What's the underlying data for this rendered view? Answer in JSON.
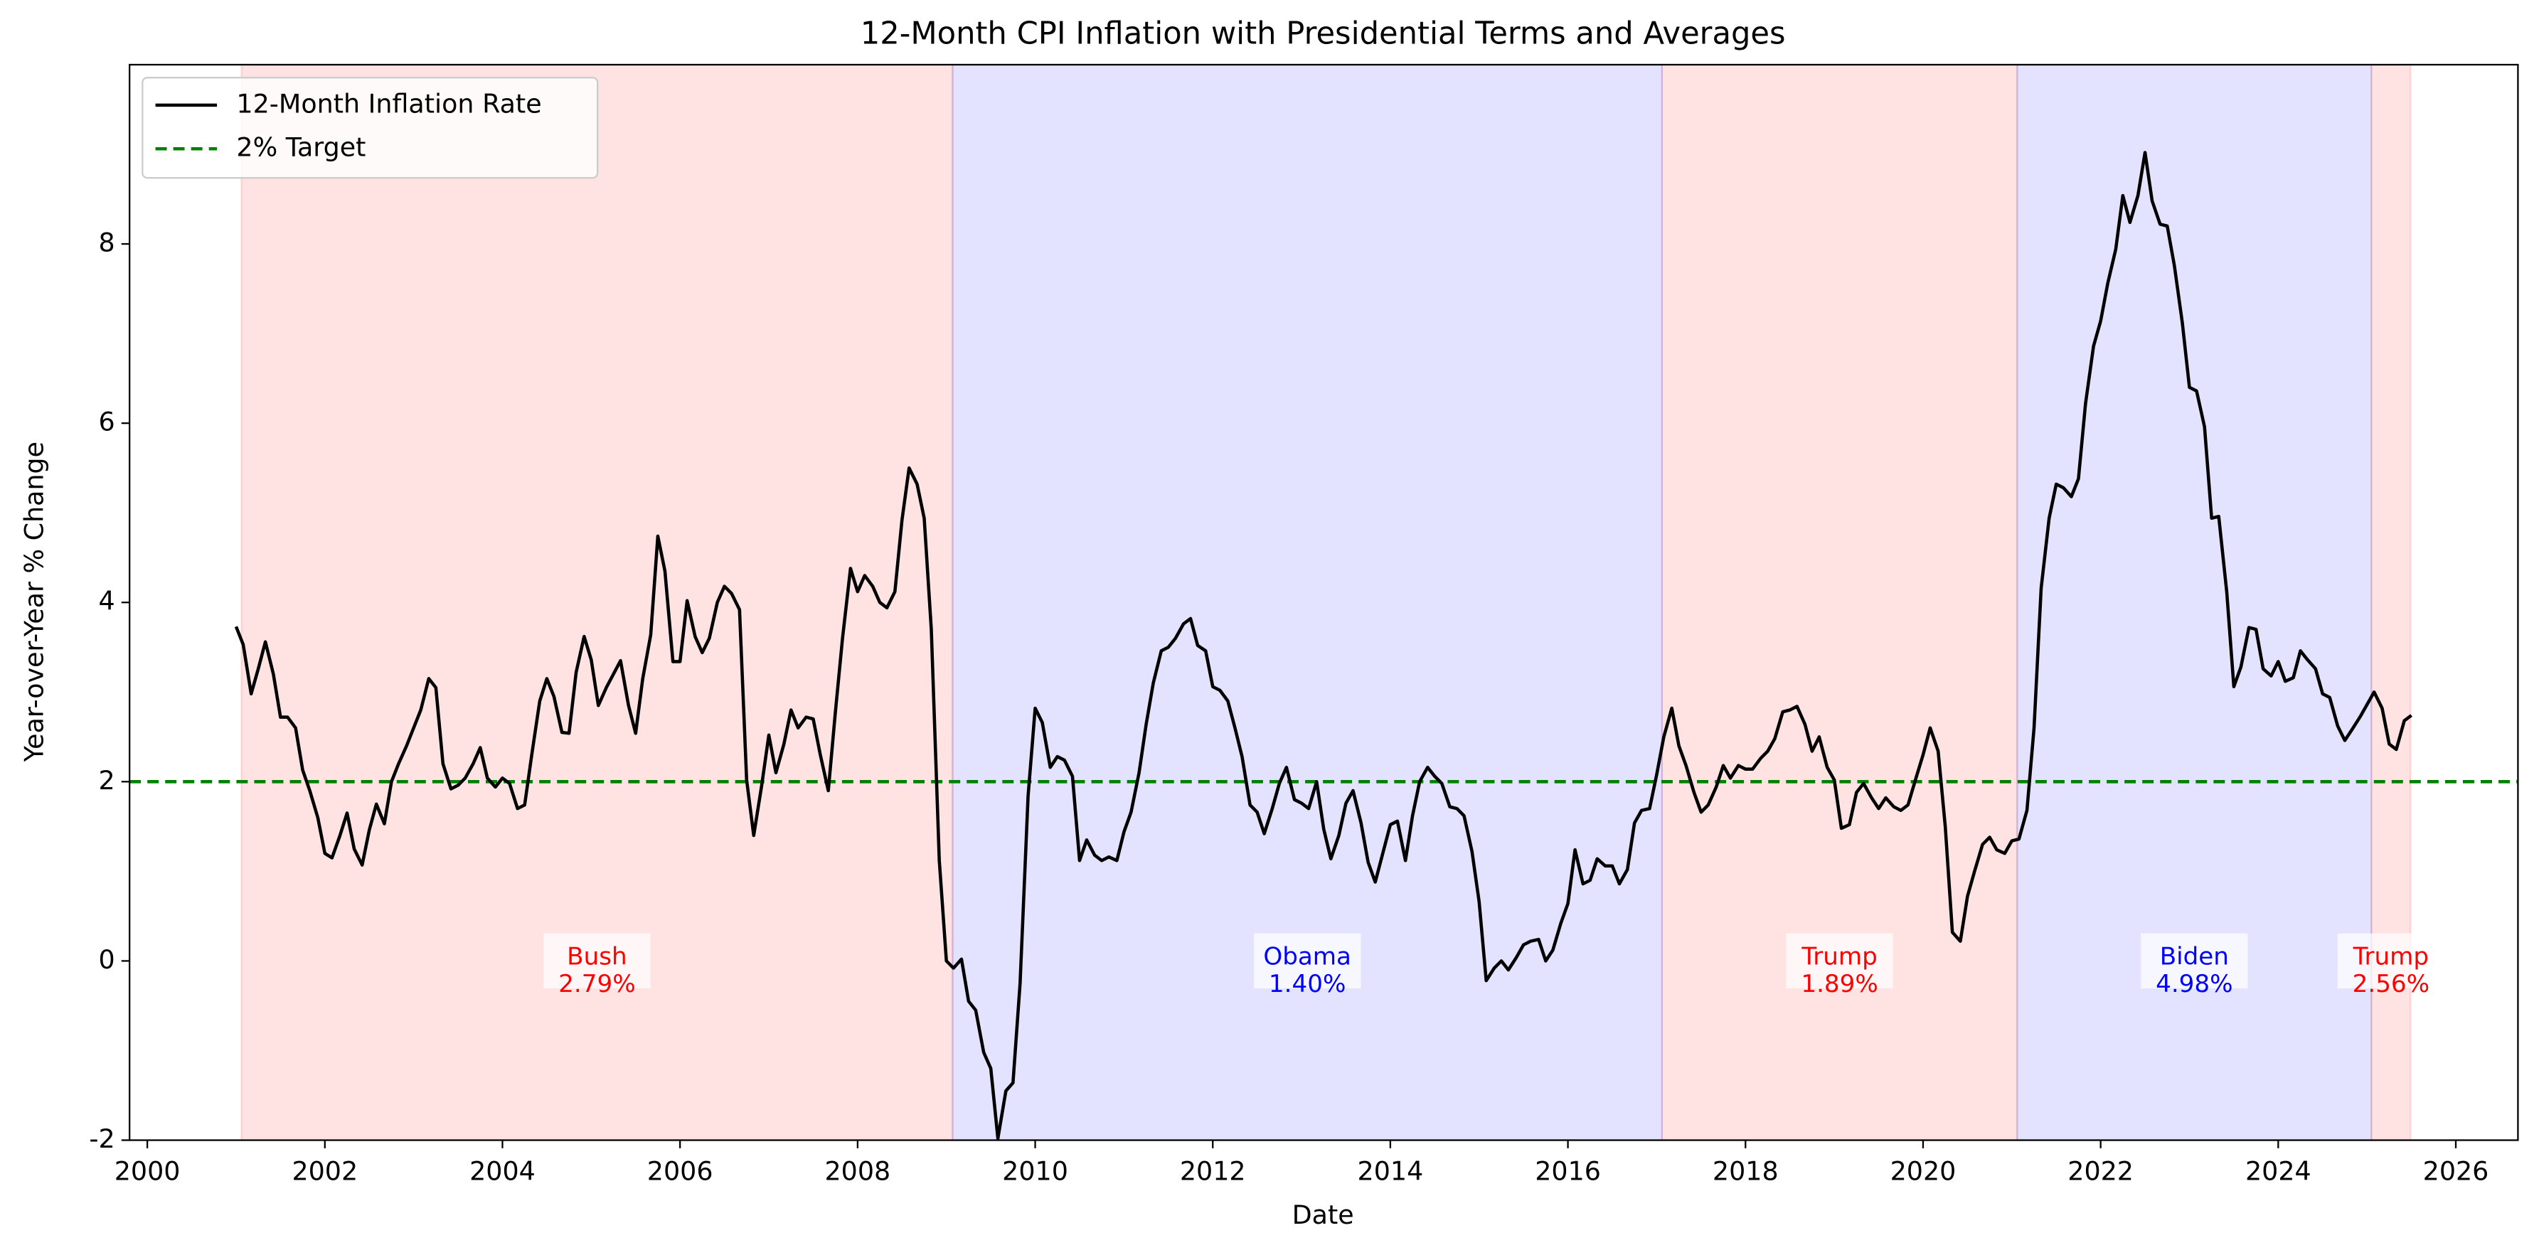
{
  "chart_data": {
    "type": "line",
    "title": "12-Month CPI Inflation with Presidential Terms and Averages",
    "xlabel": "Date",
    "ylabel": "Year-over-Year % Change",
    "xlim": [
      1999.8,
      2026.7
    ],
    "ylim": [
      -2,
      10
    ],
    "xticks": [
      2000,
      2002,
      2004,
      2006,
      2008,
      2010,
      2012,
      2014,
      2016,
      2018,
      2020,
      2022,
      2024,
      2026
    ],
    "yticks": [
      -2,
      0,
      2,
      4,
      6,
      8
    ],
    "legend": "upper left",
    "x": [
      2001.0,
      2001.08,
      2001.17,
      2001.25,
      2001.33,
      2001.42,
      2001.5,
      2001.58,
      2001.67,
      2001.75,
      2001.83,
      2001.92,
      2002.0,
      2002.08,
      2002.17,
      2002.25,
      2002.33,
      2002.42,
      2002.5,
      2002.58,
      2002.67,
      2002.75,
      2002.83,
      2002.92,
      2003.0,
      2003.08,
      2003.17,
      2003.25,
      2003.33,
      2003.42,
      2003.5,
      2003.58,
      2003.67,
      2003.75,
      2003.83,
      2003.92,
      2004.0,
      2004.08,
      2004.17,
      2004.25,
      2004.33,
      2004.42,
      2004.5,
      2004.58,
      2004.67,
      2004.75,
      2004.83,
      2004.92,
      2005.0,
      2005.08,
      2005.17,
      2005.25,
      2005.33,
      2005.42,
      2005.5,
      2005.58,
      2005.67,
      2005.75,
      2005.83,
      2005.92,
      2006.0,
      2006.08,
      2006.17,
      2006.25,
      2006.33,
      2006.42,
      2006.5,
      2006.58,
      2006.67,
      2006.75,
      2006.83,
      2006.92,
      2007.0,
      2007.08,
      2007.17,
      2007.25,
      2007.33,
      2007.42,
      2007.5,
      2007.58,
      2007.67,
      2007.75,
      2007.83,
      2007.92,
      2008.0,
      2008.08,
      2008.17,
      2008.25,
      2008.33,
      2008.42,
      2008.5,
      2008.58,
      2008.67,
      2008.75,
      2008.83,
      2008.92,
      2009.0,
      2009.08,
      2009.17,
      2009.25,
      2009.33,
      2009.42,
      2009.5,
      2009.58,
      2009.67,
      2009.75,
      2009.83,
      2009.92,
      2010.0,
      2010.08,
      2010.17,
      2010.25,
      2010.33,
      2010.42,
      2010.5,
      2010.58,
      2010.67,
      2010.75,
      2010.83,
      2010.92,
      2011.0,
      2011.08,
      2011.17,
      2011.25,
      2011.33,
      2011.42,
      2011.5,
      2011.58,
      2011.67,
      2011.75,
      2011.83,
      2011.92,
      2012.0,
      2012.08,
      2012.17,
      2012.25,
      2012.33,
      2012.42,
      2012.5,
      2012.58,
      2012.67,
      2012.75,
      2012.83,
      2012.92,
      2013.0,
      2013.08,
      2013.17,
      2013.25,
      2013.33,
      2013.42,
      2013.5,
      2013.58,
      2013.67,
      2013.75,
      2013.83,
      2013.92,
      2014.0,
      2014.08,
      2014.17,
      2014.25,
      2014.33,
      2014.42,
      2014.5,
      2014.58,
      2014.67,
      2014.75,
      2014.83,
      2014.92,
      2015.0,
      2015.08,
      2015.17,
      2015.25,
      2015.33,
      2015.42,
      2015.5,
      2015.58,
      2015.67,
      2015.75,
      2015.83,
      2015.92,
      2016.0,
      2016.08,
      2016.17,
      2016.25,
      2016.33,
      2016.42,
      2016.5,
      2016.58,
      2016.67,
      2016.75,
      2016.83,
      2016.92,
      2017.0,
      2017.08,
      2017.17,
      2017.25,
      2017.33,
      2017.42,
      2017.5,
      2017.58,
      2017.67,
      2017.75,
      2017.83,
      2017.92,
      2018.0,
      2018.08,
      2018.17,
      2018.25,
      2018.33,
      2018.42,
      2018.5,
      2018.58,
      2018.67,
      2018.75,
      2018.83,
      2018.92,
      2019.0,
      2019.08,
      2019.17,
      2019.25,
      2019.33,
      2019.42,
      2019.5,
      2019.58,
      2019.67,
      2019.75,
      2019.83,
      2019.92,
      2020.0,
      2020.08,
      2020.17,
      2020.25,
      2020.33,
      2020.42,
      2020.5,
      2020.58,
      2020.67,
      2020.75,
      2020.83,
      2020.92,
      2021.0,
      2021.08,
      2021.17,
      2021.25,
      2021.33,
      2021.42,
      2021.5,
      2021.58,
      2021.67,
      2021.75,
      2021.83,
      2021.92,
      2022.0,
      2022.08,
      2022.17,
      2022.25,
      2022.33,
      2022.42,
      2022.5,
      2022.58,
      2022.67,
      2022.75,
      2022.83,
      2022.92,
      2023.0,
      2023.08,
      2023.17,
      2023.25,
      2023.33,
      2023.42,
      2023.5,
      2023.58,
      2023.67,
      2023.75,
      2023.83,
      2023.92,
      2024.0,
      2024.08,
      2024.17,
      2024.25,
      2024.33,
      2024.42,
      2024.5,
      2024.58,
      2024.67,
      2024.75,
      2024.83,
      2024.92,
      2025.0,
      2025.08,
      2025.17,
      2025.25,
      2025.33,
      2025.42,
      2025.5
    ],
    "series": [
      {
        "name": "12-Month Inflation Rate",
        "color": "#000000",
        "values": [
          3.73,
          3.53,
          2.98,
          3.26,
          3.56,
          3.2,
          2.72,
          2.72,
          2.6,
          2.13,
          1.9,
          1.6,
          1.2,
          1.15,
          1.4,
          1.65,
          1.25,
          1.07,
          1.46,
          1.75,
          1.53,
          2.0,
          2.2,
          2.4,
          2.6,
          2.8,
          3.15,
          3.05,
          2.2,
          1.92,
          1.96,
          2.04,
          2.2,
          2.38,
          2.04,
          1.94,
          2.04,
          1.98,
          1.7,
          1.74,
          2.3,
          2.9,
          3.15,
          2.95,
          2.55,
          2.54,
          3.22,
          3.62,
          3.36,
          2.85,
          3.05,
          3.2,
          3.35,
          2.85,
          2.54,
          3.15,
          3.64,
          4.74,
          4.35,
          3.34,
          3.34,
          4.02,
          3.62,
          3.44,
          3.6,
          4.0,
          4.18,
          4.1,
          3.92,
          2.02,
          1.4,
          1.96,
          2.52,
          2.1,
          2.42,
          2.8,
          2.6,
          2.72,
          2.7,
          2.3,
          1.9,
          2.78,
          3.6,
          4.38,
          4.12,
          4.3,
          4.18,
          4.0,
          3.94,
          4.12,
          4.92,
          5.5,
          5.32,
          4.94,
          3.7,
          1.12,
          0.0,
          -0.08,
          0.02,
          -0.45,
          -0.55,
          -1.02,
          -1.2,
          -1.98,
          -1.45,
          -1.36,
          -0.25,
          1.84,
          2.82,
          2.66,
          2.16,
          2.28,
          2.24,
          2.06,
          1.12,
          1.35,
          1.18,
          1.12,
          1.16,
          1.12,
          1.44,
          1.66,
          2.1,
          2.64,
          3.1,
          3.46,
          3.5,
          3.6,
          3.76,
          3.82,
          3.52,
          3.46,
          3.06,
          3.02,
          2.9,
          2.6,
          2.28,
          1.74,
          1.66,
          1.42,
          1.7,
          1.98,
          2.16,
          1.8,
          1.76,
          1.7,
          2.0,
          1.47,
          1.14,
          1.4,
          1.76,
          1.9,
          1.54,
          1.1,
          0.88,
          1.22,
          1.52,
          1.56,
          1.12,
          1.62,
          2.0,
          2.16,
          2.06,
          1.98,
          1.72,
          1.7,
          1.62,
          1.22,
          0.66,
          -0.22,
          -0.08,
          0.0,
          -0.1,
          0.04,
          0.18,
          0.22,
          0.24,
          0.0,
          0.12,
          0.42,
          0.64,
          1.24,
          0.86,
          0.9,
          1.14,
          1.06,
          1.06,
          0.86,
          1.02,
          1.54,
          1.68,
          1.7,
          2.08,
          2.5,
          2.82,
          2.4,
          2.18,
          1.88,
          1.66,
          1.74,
          1.94,
          2.18,
          2.04,
          2.18,
          2.14,
          2.14,
          2.26,
          2.34,
          2.48,
          2.78,
          2.8,
          2.84,
          2.64,
          2.34,
          2.5,
          2.16,
          2.02,
          1.48,
          1.52,
          1.88,
          1.98,
          1.82,
          1.7,
          1.82,
          1.72,
          1.68,
          1.74,
          2.04,
          2.3,
          2.6,
          2.34,
          1.5,
          0.32,
          0.22,
          0.72,
          1.0,
          1.3,
          1.38,
          1.24,
          1.2,
          1.34,
          1.36,
          1.68,
          2.6,
          4.16,
          4.94,
          5.32,
          5.28,
          5.18,
          5.38,
          6.22,
          6.86,
          7.14,
          7.56,
          7.94,
          8.54,
          8.24,
          8.54,
          9.02,
          8.48,
          8.22,
          8.2,
          7.76,
          7.12,
          6.4,
          6.36,
          5.96,
          4.94,
          4.96,
          4.12,
          3.06,
          3.28,
          3.72,
          3.7,
          3.26,
          3.18,
          3.34,
          3.12,
          3.16,
          3.46,
          3.36,
          3.26,
          2.98,
          2.94,
          2.62,
          2.46,
          2.58,
          2.72,
          2.86,
          3.0,
          2.82,
          2.42,
          2.36,
          2.68,
          2.74
        ]
      }
    ],
    "target": {
      "name": "2% Target",
      "value": 2,
      "color": "#008000"
    },
    "terms": [
      {
        "name": "Bush",
        "start": 2001.06,
        "end": 2009.07,
        "color": "#ff0000",
        "average": 2.79,
        "average_label": "2.79%"
      },
      {
        "name": "Obama",
        "start": 2009.07,
        "end": 2017.06,
        "color": "#0000ff",
        "average": 1.4,
        "average_label": "1.40%"
      },
      {
        "name": "Trump",
        "start": 2017.06,
        "end": 2021.06,
        "color": "#ff0000",
        "average": 1.89,
        "average_label": "1.89%"
      },
      {
        "name": "Biden",
        "start": 2021.06,
        "end": 2025.05,
        "color": "#0000ff",
        "average": 4.98,
        "average_label": "4.98%"
      },
      {
        "name": "Trump",
        "start": 2025.05,
        "end": 2025.49,
        "color": "#ff0000",
        "average": 2.56,
        "average_label": "2.56%"
      }
    ]
  }
}
